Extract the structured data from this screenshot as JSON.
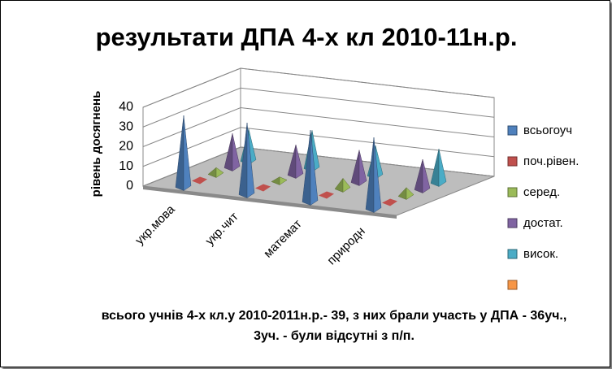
{
  "chart_data": {
    "type": "pyramid3d",
    "title": "результати ДПА 4-х кл 2010-11н.р.",
    "y_axis_label": "рівень досягнень",
    "footnote": "всього учнів 4-х кл.у 2010-2011н.р.- 39,  з них брали участь у ДПА - 36уч., 3уч. - були відсутні з п/п.",
    "categories": [
      "укр.мова",
      "укр.чит",
      "математ",
      "природн"
    ],
    "series": [
      {
        "name": "всьогоуч",
        "color": "#4f81bd",
        "values": [
          36,
          36,
          36,
          36
        ]
      },
      {
        "name": "поч.рівен.",
        "color": "#c0504d",
        "values": [
          0,
          0,
          0,
          0
        ]
      },
      {
        "name": "серед.",
        "color": "#9bbb59",
        "values": [
          3,
          2,
          5,
          4
        ]
      },
      {
        "name": "достат.",
        "color": "#8064a2",
        "values": [
          17,
          15,
          16,
          15
        ]
      },
      {
        "name": "висок.",
        "color": "#4bacc6",
        "values": [
          16,
          19,
          15,
          17
        ]
      },
      {
        "name": null,
        "color": "#f79646",
        "values": [
          null,
          null,
          null,
          null
        ]
      }
    ],
    "ylim": [
      0,
      40
    ],
    "yticks": [
      0,
      10,
      20,
      30,
      40
    ],
    "grid": true,
    "legend": "right"
  }
}
